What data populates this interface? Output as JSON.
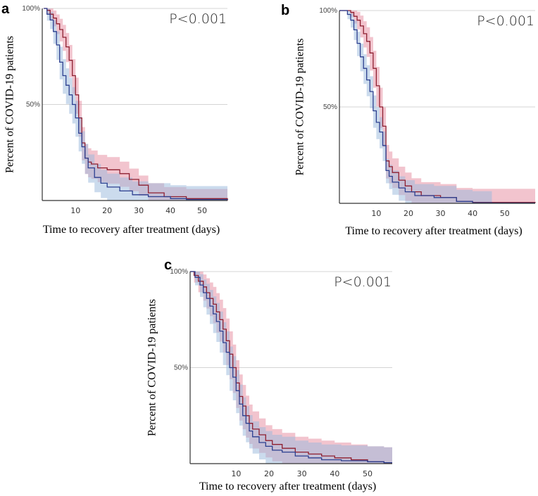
{
  "chart_data": [
    {
      "type": "line",
      "panel_label": "a",
      "p_value": "P<0.001",
      "xlabel": "Time to recovery after treatment (days)",
      "ylabel": "Percent of COVID-19 patients",
      "xlim": [
        -0.5,
        58
      ],
      "ylim": [
        0,
        100
      ],
      "xticks": [
        10,
        20,
        30,
        40,
        50
      ],
      "xtick_labels": [
        "10",
        "20",
        "30",
        "40",
        "50"
      ],
      "yticks": [
        100,
        50
      ],
      "ytick_labels": [
        "100%",
        "50%"
      ],
      "grid": true,
      "series": [
        {
          "name": "group-red",
          "color": "#8e1f30",
          "band": "#e58a9e",
          "ci_scale": 9,
          "ci_floor": 5,
          "ci_end": 58,
          "x": [
            0,
            1,
            2,
            3,
            4,
            5,
            6,
            7,
            8,
            9,
            10,
            11,
            12,
            13,
            14,
            15,
            17,
            20,
            24,
            27,
            30,
            33,
            38,
            45,
            58
          ],
          "y": [
            100,
            99,
            97,
            95,
            92,
            89,
            85,
            80,
            73,
            65,
            55,
            43,
            30,
            22,
            20,
            19,
            17,
            16,
            14,
            11,
            8,
            4,
            2,
            1,
            0
          ]
        },
        {
          "name": "group-blue",
          "color": "#2c3f8f",
          "band": "#98b8dc",
          "ci_scale": 9,
          "ci_floor": 7,
          "ci_end": 58,
          "x": [
            0,
            1,
            2,
            3,
            4,
            5,
            6,
            7,
            8,
            9,
            10,
            11,
            12,
            13,
            14,
            16,
            18,
            20,
            24,
            28,
            33,
            40,
            45,
            58
          ],
          "y": [
            100,
            97,
            94,
            88,
            81,
            72,
            65,
            60,
            55,
            50,
            43,
            35,
            28,
            22,
            17,
            12,
            9,
            7,
            5,
            3,
            2,
            1,
            0.5,
            0.3
          ]
        }
      ]
    },
    {
      "type": "line",
      "panel_label": "b",
      "p_value": "P<0.001",
      "xlabel": "Time to recovery after treatment (days)",
      "ylabel": "Percent of COVID-19 patients",
      "xlim": [
        -1.5,
        59.5
      ],
      "ylim": [
        0,
        100
      ],
      "xticks": [
        10,
        20,
        30,
        40,
        50
      ],
      "xtick_labels": [
        "10",
        "20",
        "30",
        "40",
        "50"
      ],
      "yticks": [
        100,
        50
      ],
      "ytick_labels": [
        "100%",
        "50%"
      ],
      "grid": true,
      "series": [
        {
          "name": "group-red",
          "color": "#8e1f30",
          "band": "#e58a9e",
          "ci_scale": 10,
          "ci_floor": 7,
          "ci_end": 59.5,
          "x": [
            -1.5,
            2,
            3,
            4,
            5,
            6,
            7,
            8,
            9,
            10,
            11,
            12,
            13,
            14,
            15,
            17,
            19,
            21,
            24,
            30,
            35,
            40,
            59.5
          ],
          "y": [
            100,
            99,
            97,
            95,
            92,
            88,
            84,
            78,
            70,
            61,
            50,
            40,
            22,
            19,
            16,
            12,
            9,
            6,
            4,
            3,
            1,
            0.5,
            0.3
          ]
        },
        {
          "name": "group-blue",
          "color": "#2c3f8f",
          "band": "#98b8dc",
          "ci_scale": 8,
          "ci_floor": 6,
          "ci_end": 46,
          "x": [
            -1.5,
            1,
            2,
            3,
            4,
            5,
            6,
            7,
            8,
            9,
            10,
            11,
            12,
            13,
            14,
            15,
            17,
            19,
            22,
            28,
            35,
            40,
            46
          ],
          "y": [
            100,
            98,
            95,
            90,
            83,
            76,
            70,
            64,
            58,
            48,
            42,
            37,
            30,
            17,
            14,
            11,
            8,
            6,
            4,
            3,
            1,
            0.3,
            0.2
          ]
        }
      ]
    },
    {
      "type": "line",
      "panel_label": "c",
      "p_value": "P<0.001",
      "xlabel": "Time to recovery after treatment (days)",
      "ylabel": "Percent of COVID-19 patients",
      "xlim": [
        -4,
        57.5
      ],
      "ylim": [
        0,
        100
      ],
      "xticks": [
        10,
        20,
        30,
        40,
        50
      ],
      "xtick_labels": [
        "10",
        "20",
        "30",
        "40",
        "50"
      ],
      "yticks": [
        100,
        50
      ],
      "ytick_labels": [
        "100%",
        "50%"
      ],
      "grid": true,
      "series": [
        {
          "name": "group-red",
          "color": "#8e1f30",
          "band": "#e58a9e",
          "ci_scale": 12,
          "ci_floor": 8,
          "ci_end": 57.5,
          "x": [
            -4,
            -2.8,
            -1.5,
            0,
            1,
            2,
            3,
            4,
            5,
            6,
            7,
            8,
            9,
            10,
            11,
            12,
            13,
            14,
            15,
            17,
            19,
            21,
            24,
            28,
            32,
            36,
            40,
            45,
            50,
            55
          ],
          "y": [
            100,
            98,
            95,
            92,
            89,
            86,
            83,
            79,
            75,
            70,
            64,
            57,
            50,
            42,
            35,
            30,
            25,
            21,
            18,
            15,
            12,
            10,
            8,
            6,
            5,
            4,
            3,
            2,
            1,
            0.5
          ]
        },
        {
          "name": "group-blue",
          "color": "#2c3f8f",
          "band": "#98b8dc",
          "ci_scale": 11,
          "ci_floor": 8,
          "ci_end": 57.5,
          "x": [
            -4,
            -2.5,
            -1,
            0,
            1,
            2,
            3,
            4,
            5,
            6,
            7,
            8,
            9,
            10,
            11,
            12,
            13,
            14,
            15,
            17,
            19,
            21,
            24,
            28,
            32,
            36,
            42,
            50,
            55
          ],
          "y": [
            100,
            97,
            93,
            89,
            86,
            82,
            78,
            74,
            69,
            63,
            58,
            50,
            45,
            38,
            31,
            25,
            21,
            17,
            14,
            11,
            9,
            7,
            6,
            4,
            3,
            2,
            1.5,
            1,
            0.5
          ]
        }
      ]
    }
  ]
}
